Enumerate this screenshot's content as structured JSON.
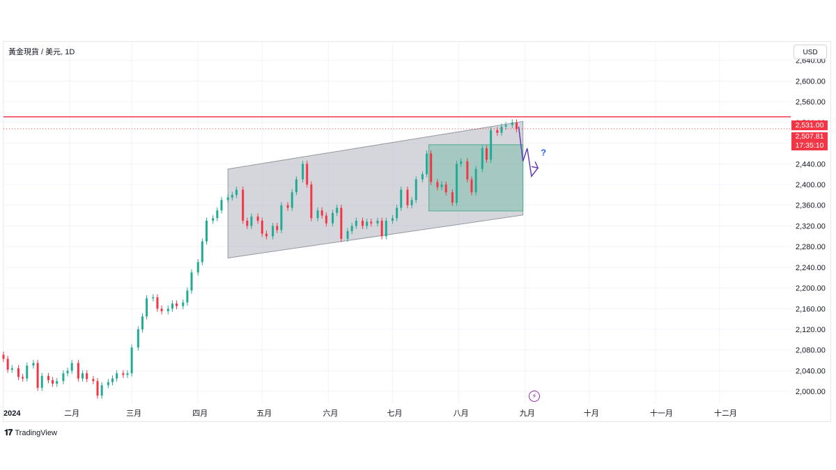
{
  "header": {
    "symbol": "黃金現貨 / 美元, 1D",
    "currency_button": "USD"
  },
  "footer": {
    "logo_text": "TradingView"
  },
  "price_tags": {
    "resistance": "2,531.00",
    "current_price": "2,507.81",
    "countdown": "17:35:10"
  },
  "annotation": {
    "question": "?"
  },
  "colors": {
    "up": "#22ab94",
    "down": "#f23645",
    "channel_fill": "#b2b5be",
    "box_fill": "#4caf8f",
    "arrow": "#673ab7",
    "resistance_line": "#f23645"
  },
  "icons": {
    "event": "lightning-icon",
    "logo": "tradingview-logo-icon"
  },
  "chart_data": {
    "type": "candlestick",
    "title": "黃金現貨 / 美元, 1D",
    "currency": "USD",
    "y_ticks": [
      2000,
      2040,
      2080,
      2120,
      2160,
      2200,
      2240,
      2280,
      2320,
      2360,
      2400,
      2440,
      2480,
      2520,
      2560,
      2600,
      2640
    ],
    "y_tick_labels": [
      "2,000.00",
      "2,040.00",
      "2,080.00",
      "2,120.00",
      "2,160.00",
      "2,200.00",
      "2,240.00",
      "2,280.00",
      "2,320.00",
      "2,360.00",
      "2,400.00",
      "2,440.00",
      "2,480.00",
      "2,520.00",
      "2,560.00",
      "2,600.00",
      "2,640.00"
    ],
    "x_axis_range": [
      "2024-01-01",
      "2024-12-31"
    ],
    "ylim": [
      1976,
      2676
    ],
    "x_ticks": [
      {
        "date": "2024-01-01",
        "label": "2024"
      },
      {
        "date": "2024-02-01",
        "label": "二月"
      },
      {
        "date": "2024-03-01",
        "label": "三月"
      },
      {
        "date": "2024-04-01",
        "label": "四月"
      },
      {
        "date": "2024-05-01",
        "label": "五月"
      },
      {
        "date": "2024-06-01",
        "label": "六月"
      },
      {
        "date": "2024-07-01",
        "label": "七月"
      },
      {
        "date": "2024-08-01",
        "label": "八月"
      },
      {
        "date": "2024-09-01",
        "label": "九月"
      },
      {
        "date": "2024-10-01",
        "label": "十月"
      },
      {
        "date": "2024-11-01",
        "label": "十一月"
      },
      {
        "date": "2024-12-01",
        "label": "十二月"
      }
    ],
    "grid": true,
    "resistance_level": 2531.0,
    "current_price": 2507.81,
    "ohlc_points": [
      [
        "2024-01-01",
        2063
      ],
      [
        "2024-01-03",
        2042
      ],
      [
        "2024-01-05",
        2045
      ],
      [
        "2024-01-08",
        2028
      ],
      [
        "2024-01-10",
        2025
      ],
      [
        "2024-01-12",
        2050
      ],
      [
        "2024-01-15",
        2055
      ],
      [
        "2024-01-17",
        2007
      ],
      [
        "2024-01-19",
        2030
      ],
      [
        "2024-01-22",
        2022
      ],
      [
        "2024-01-24",
        2015
      ],
      [
        "2024-01-26",
        2020
      ],
      [
        "2024-01-29",
        2035
      ],
      [
        "2024-01-31",
        2040
      ],
      [
        "2024-02-02",
        2055
      ],
      [
        "2024-02-05",
        2025
      ],
      [
        "2024-02-07",
        2035
      ],
      [
        "2024-02-09",
        2024
      ],
      [
        "2024-02-12",
        2020
      ],
      [
        "2024-02-14",
        1992
      ],
      [
        "2024-02-16",
        2012
      ],
      [
        "2024-02-19",
        2018
      ],
      [
        "2024-02-21",
        2025
      ],
      [
        "2024-02-23",
        2035
      ],
      [
        "2024-02-26",
        2032
      ],
      [
        "2024-02-28",
        2035
      ],
      [
        "2024-03-01",
        2085
      ],
      [
        "2024-03-04",
        2120
      ],
      [
        "2024-03-06",
        2145
      ],
      [
        "2024-03-08",
        2180
      ],
      [
        "2024-03-11",
        2182
      ],
      [
        "2024-03-13",
        2160
      ],
      [
        "2024-03-15",
        2155
      ],
      [
        "2024-03-18",
        2160
      ],
      [
        "2024-03-20",
        2170
      ],
      [
        "2024-03-22",
        2165
      ],
      [
        "2024-03-25",
        2172
      ],
      [
        "2024-03-27",
        2195
      ],
      [
        "2024-03-29",
        2230
      ],
      [
        "2024-04-01",
        2250
      ],
      [
        "2024-04-03",
        2290
      ],
      [
        "2024-04-05",
        2330
      ],
      [
        "2024-04-08",
        2335
      ],
      [
        "2024-04-10",
        2350
      ],
      [
        "2024-04-12",
        2370
      ],
      [
        "2024-04-15",
        2375
      ],
      [
        "2024-04-17",
        2380
      ],
      [
        "2024-04-19",
        2390
      ],
      [
        "2024-04-22",
        2330
      ],
      [
        "2024-04-24",
        2320
      ],
      [
        "2024-04-26",
        2338
      ],
      [
        "2024-04-29",
        2330
      ],
      [
        "2024-05-01",
        2305
      ],
      [
        "2024-05-03",
        2300
      ],
      [
        "2024-05-06",
        2320
      ],
      [
        "2024-05-08",
        2312
      ],
      [
        "2024-05-10",
        2360
      ],
      [
        "2024-05-13",
        2355
      ],
      [
        "2024-05-15",
        2385
      ],
      [
        "2024-05-17",
        2410
      ],
      [
        "2024-05-20",
        2440
      ],
      [
        "2024-05-22",
        2400
      ],
      [
        "2024-05-24",
        2335
      ],
      [
        "2024-05-27",
        2350
      ],
      [
        "2024-05-29",
        2340
      ],
      [
        "2024-05-31",
        2325
      ],
      [
        "2024-06-03",
        2345
      ],
      [
        "2024-06-05",
        2355
      ],
      [
        "2024-06-07",
        2295
      ],
      [
        "2024-06-10",
        2310
      ],
      [
        "2024-06-12",
        2320
      ],
      [
        "2024-06-14",
        2330
      ],
      [
        "2024-06-17",
        2320
      ],
      [
        "2024-06-19",
        2328
      ],
      [
        "2024-06-21",
        2325
      ],
      [
        "2024-06-24",
        2330
      ],
      [
        "2024-06-26",
        2300
      ],
      [
        "2024-06-28",
        2330
      ],
      [
        "2024-07-01",
        2335
      ],
      [
        "2024-07-03",
        2355
      ],
      [
        "2024-07-05",
        2390
      ],
      [
        "2024-07-08",
        2360
      ],
      [
        "2024-07-10",
        2370
      ],
      [
        "2024-07-12",
        2410
      ],
      [
        "2024-07-15",
        2420
      ],
      [
        "2024-07-17",
        2460
      ],
      [
        "2024-07-19",
        2405
      ],
      [
        "2024-07-22",
        2395
      ],
      [
        "2024-07-24",
        2400
      ],
      [
        "2024-07-26",
        2385
      ],
      [
        "2024-07-29",
        2365
      ],
      [
        "2024-07-31",
        2440
      ],
      [
        "2024-08-02",
        2445
      ],
      [
        "2024-08-05",
        2410
      ],
      [
        "2024-08-07",
        2385
      ],
      [
        "2024-08-09",
        2430
      ],
      [
        "2024-08-12",
        2470
      ],
      [
        "2024-08-14",
        2448
      ],
      [
        "2024-08-16",
        2505
      ],
      [
        "2024-08-19",
        2500
      ],
      [
        "2024-08-21",
        2512
      ],
      [
        "2024-08-23",
        2515
      ],
      [
        "2024-08-26",
        2520
      ],
      [
        "2024-08-28",
        2507
      ]
    ],
    "channel": {
      "upper": [
        [
          "2024-04-15",
          2430
        ],
        [
          "2024-08-31",
          2522
        ]
      ],
      "lower": [
        [
          "2024-04-15",
          2258
        ],
        [
          "2024-08-31",
          2341
        ]
      ]
    },
    "target_zone": {
      "from": "2024-07-18",
      "to": "2024-08-31",
      "top": 2477,
      "bottom": 2349
    },
    "projection_path": [
      [
        "2024-08-29",
        2512
      ],
      [
        "2024-08-31",
        2445
      ],
      [
        "2024-09-02",
        2470
      ],
      [
        "2024-09-04",
        2416
      ],
      [
        "2024-09-07",
        2432
      ]
    ]
  }
}
